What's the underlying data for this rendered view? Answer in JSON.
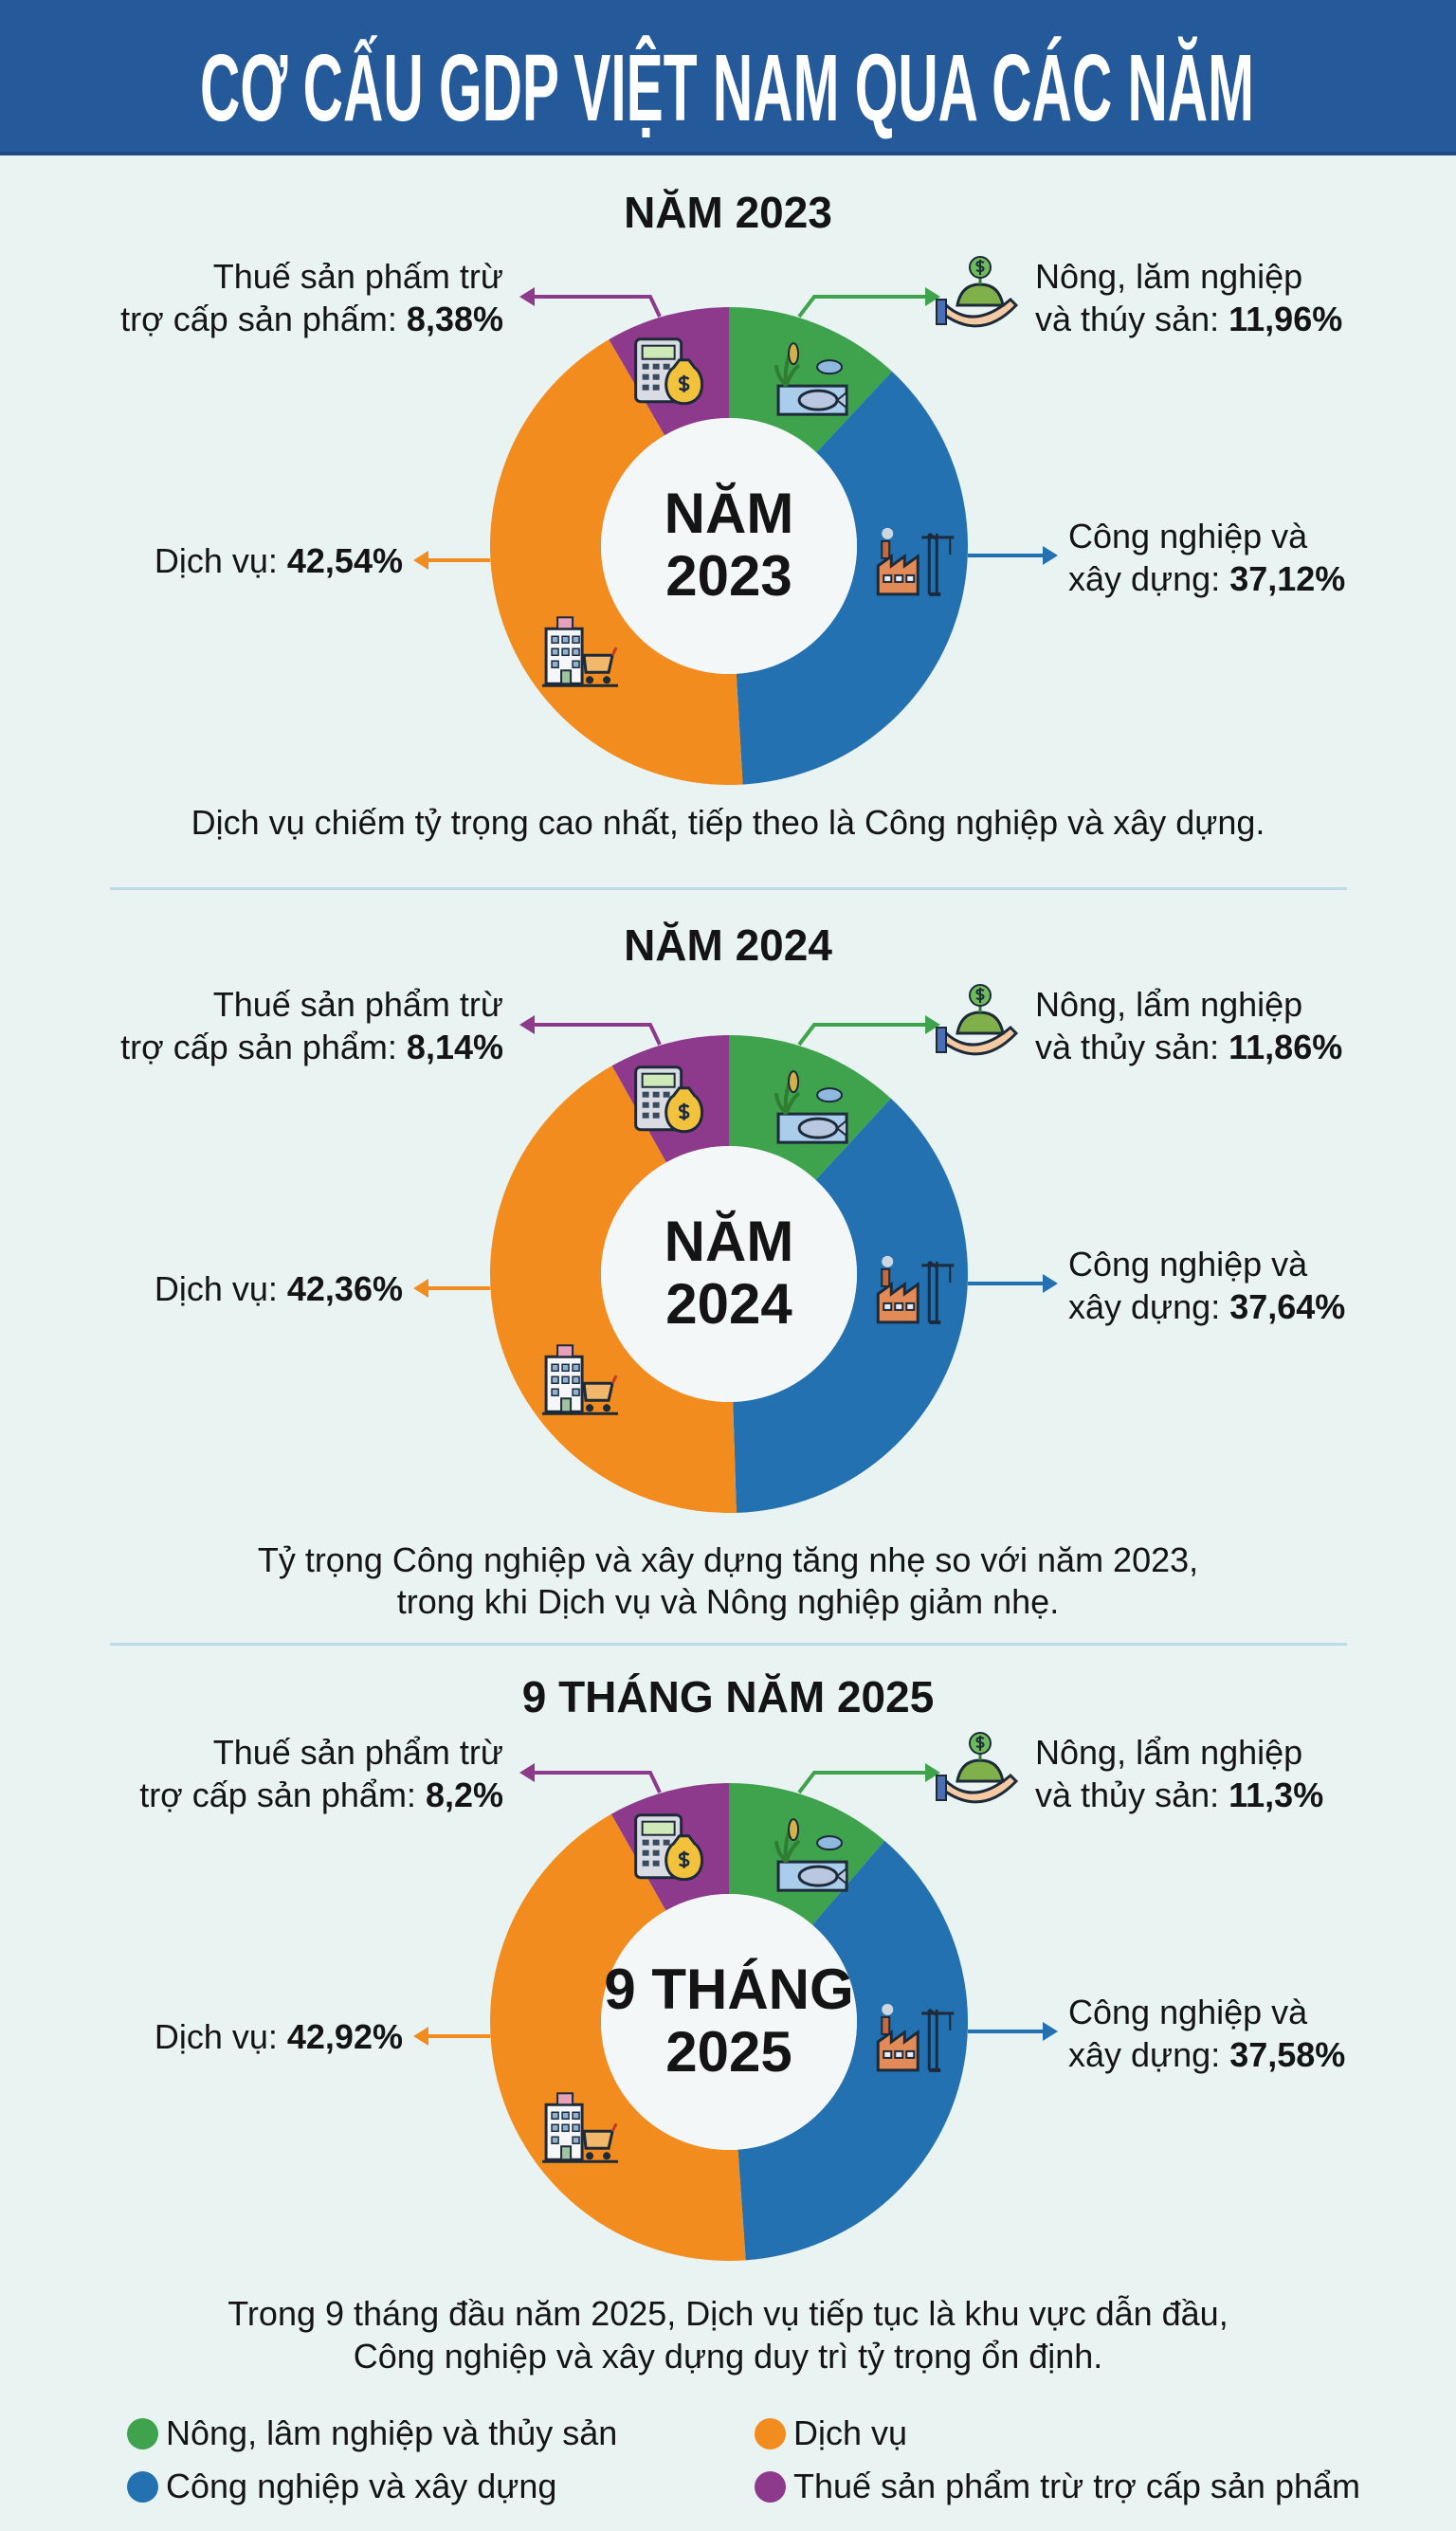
{
  "header": {
    "title": "CƠ CẤU GDP VIỆT NAM QUA CÁC NĂM"
  },
  "colors": {
    "banner": "#245a9a",
    "agriculture": "#3fa34d",
    "industry": "#2371b0",
    "services": "#f28c1e",
    "tax": "#8e3a8c"
  },
  "chart_data": [
    {
      "type": "pie",
      "title": "NĂM 2023",
      "center_label": [
        "NĂM",
        "2023"
      ],
      "start": "top",
      "direction": "clockwise",
      "slices": [
        {
          "key": "agriculture",
          "label_line1": "Nông, lăm nghiệp",
          "label_line2": "và thúy sản: ",
          "value_text": "11,96%",
          "value": 11.96,
          "icon": "hand-money-plant-icon",
          "slice_icon": "rice-fish-icon"
        },
        {
          "key": "industry",
          "label_line1": "Công nghiệp và",
          "label_line2": "xây dựng: ",
          "value_text": "37,12%",
          "value": 37.12,
          "slice_icon": "factory-crane-icon"
        },
        {
          "key": "services",
          "label_line1": "",
          "label_line2": "Dịch vụ: ",
          "value_text": "42,54%",
          "value": 42.54,
          "slice_icon": "building-cart-icon"
        },
        {
          "key": "tax",
          "label_line1": "Thuế sản phấm trừ",
          "label_line2": "trợ cấp sản phấm: ",
          "value_text": "8,38%",
          "value": 8.38,
          "slice_icon": "calculator-money-icon"
        }
      ],
      "caption": [
        "Dịch vụ chiếm tỷ trọng cao nhất, tiếp theo là Công nghiệp và xây dựng."
      ]
    },
    {
      "type": "pie",
      "title": "NĂM 2024",
      "center_label": [
        "NĂM",
        "2024"
      ],
      "start": "top",
      "direction": "clockwise",
      "slices": [
        {
          "key": "agriculture",
          "label_line1": "Nông, lẩm nghiệp",
          "label_line2": "và thủy sản: ",
          "value_text": "11,86%",
          "value": 11.86,
          "icon": "hand-money-plant-icon",
          "slice_icon": "rice-fish-icon"
        },
        {
          "key": "industry",
          "label_line1": "Công nghiệp và",
          "label_line2": "xây dựng: ",
          "value_text": "37,64%",
          "value": 37.64,
          "slice_icon": "factory-crane-icon"
        },
        {
          "key": "services",
          "label_line1": "",
          "label_line2": "Dịch vụ: ",
          "value_text": "42,36%",
          "value": 42.36,
          "slice_icon": "building-cart-icon"
        },
        {
          "key": "tax",
          "label_line1": "Thuế sản phẩm trừ",
          "label_line2": "trợ cấp sản phẩm: ",
          "value_text": "8,14%",
          "value": 8.14,
          "slice_icon": "calculator-money-icon"
        }
      ],
      "caption": [
        "Tỷ trọng Công nghiệp và xây dựng tăng nhẹ so với năm 2023,",
        "trong khi Dịch vụ và Nông nghiệp giảm nhẹ."
      ]
    },
    {
      "type": "pie",
      "title": "9 THÁNG NĂM 2025",
      "center_label": [
        "9 THÁNG",
        "2025"
      ],
      "start": "top",
      "direction": "clockwise",
      "slices": [
        {
          "key": "agriculture",
          "label_line1": "Nông, lẩm nghiệp",
          "label_line2": "và thủy sản: ",
          "value_text": "11,3%",
          "value": 11.3,
          "icon": "hand-money-plant-icon",
          "slice_icon": "rice-fish-icon"
        },
        {
          "key": "industry",
          "label_line1": "Công nghiệp và",
          "label_line2": "xây dựng: ",
          "value_text": "37,58%",
          "value": 37.58,
          "slice_icon": "factory-crane-icon"
        },
        {
          "key": "services",
          "label_line1": "",
          "label_line2": "Dịch vụ: ",
          "value_text": "42,92%",
          "value": 42.92,
          "slice_icon": "building-cart-icon"
        },
        {
          "key": "tax",
          "label_line1": "Thuế sản phẩm trừ",
          "label_line2": "trợ cấp sản phẩm: ",
          "value_text": "8,2%",
          "value": 8.2,
          "slice_icon": "calculator-money-icon"
        }
      ],
      "caption": [
        "Trong 9 tháng đầu năm 2025, Dịch vụ tiếp tục là khu vực dẫn đầu,",
        "Công nghiệp và xây dựng duy trì tỷ trọng ổn định."
      ]
    }
  ],
  "legend": [
    {
      "key": "agriculture",
      "label": "Nông, lâm nghiệp và thủy sản"
    },
    {
      "key": "services",
      "label": "Dịch vụ"
    },
    {
      "key": "industry",
      "label": "Công nghiệp và xây dựng"
    },
    {
      "key": "tax",
      "label": "Thuế sản phẩm trừ trợ cấp sản phẩm"
    }
  ]
}
